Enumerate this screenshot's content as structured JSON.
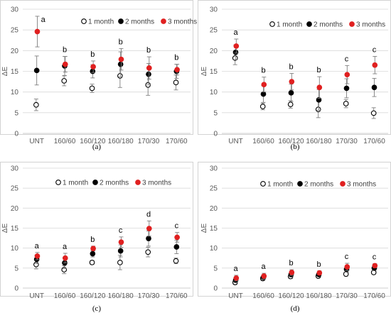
{
  "colors": {
    "month1": "#ffffff",
    "month1_stroke": "#000000",
    "month2": "#000000",
    "month3": "#e02020"
  },
  "legend_labels": [
    "1 month",
    "2 months",
    "3 months"
  ],
  "chart_data": [
    {
      "type": "scatter",
      "caption": "(a)",
      "ylabel": "ΔE",
      "ylim": [
        0,
        30
      ],
      "yticks": [
        "0",
        "5",
        "10",
        "15",
        "20",
        "25",
        "30"
      ],
      "categories": [
        "UNT",
        "160/60",
        "160/120",
        "160/180",
        "170/30",
        "170/60"
      ],
      "series": [
        {
          "name": "1 month",
          "values": [
            6.9,
            12.7,
            10.9,
            13.9,
            11.7,
            12.3
          ],
          "errors": [
            1.4,
            1.2,
            1.0,
            2.8,
            2.5,
            1.8
          ]
        },
        {
          "name": "2 months",
          "values": [
            15.2,
            16.3,
            15.0,
            16.7,
            14.3,
            15.0
          ],
          "errors": [
            3.5,
            2.3,
            1.6,
            3.0,
            2.6,
            1.7
          ]
        },
        {
          "name": "3 months",
          "values": [
            24.6,
            16.7,
            16.1,
            17.9,
            15.8,
            15.4
          ],
          "errors": [
            3.7,
            1.9,
            1.4,
            2.6,
            2.7,
            1.3
          ]
        }
      ],
      "labels": [
        "a",
        "b",
        "b",
        "b",
        "b",
        "b"
      ]
    },
    {
      "type": "scatter",
      "caption": "(b)",
      "ylabel": "ΔE",
      "ylim": [
        0,
        30
      ],
      "yticks": [
        "0",
        "5",
        "10",
        "15",
        "20",
        "25",
        "30"
      ],
      "categories": [
        "UNT",
        "160/60",
        "160/120",
        "160/180",
        "170/30",
        "170/60"
      ],
      "series": [
        {
          "name": "1 month",
          "values": [
            18.2,
            6.5,
            7.0,
            5.8,
            7.2,
            4.9
          ],
          "errors": [
            1.6,
            0.8,
            0.9,
            2.0,
            1.0,
            1.3
          ]
        },
        {
          "name": "2 months",
          "values": [
            19.6,
            9.5,
            9.8,
            8.1,
            10.9,
            11.1
          ],
          "errors": [
            1.8,
            2.0,
            2.1,
            2.5,
            2.3,
            2.2
          ]
        },
        {
          "name": "3 months",
          "values": [
            21.1,
            11.8,
            12.5,
            11.1,
            14.2,
            16.5
          ],
          "errors": [
            1.7,
            1.8,
            2.0,
            2.6,
            2.2,
            2.1
          ]
        }
      ],
      "labels": [
        "a",
        "b",
        "b",
        "b",
        "c",
        "c"
      ]
    },
    {
      "type": "scatter",
      "caption": "(c)",
      "ylabel": "ΔE",
      "ylim": [
        0,
        30
      ],
      "yticks": [
        "0",
        "5",
        "10",
        "15",
        "20",
        "25",
        "30"
      ],
      "categories": [
        "UNT",
        "160/60",
        "160/120",
        "160/180",
        "170/30",
        "170/60"
      ],
      "series": [
        {
          "name": "1 month",
          "values": [
            5.9,
            4.6,
            6.4,
            6.4,
            9.0,
            6.8
          ],
          "errors": [
            1.1,
            1.0,
            0.5,
            1.8,
            1.2,
            0.7
          ]
        },
        {
          "name": "2 months",
          "values": [
            7.2,
            6.3,
            8.6,
            9.3,
            12.4,
            10.3
          ],
          "errors": [
            1.1,
            1.4,
            0.8,
            1.5,
            1.9,
            1.7
          ]
        },
        {
          "name": "3 months",
          "values": [
            8.0,
            7.5,
            9.9,
            11.5,
            14.9,
            12.7
          ],
          "errors": [
            0.9,
            1.2,
            0.6,
            1.3,
            1.9,
            1.2
          ]
        }
      ],
      "labels": [
        "a",
        "a",
        "b",
        "c",
        "d",
        "c"
      ]
    },
    {
      "type": "scatter",
      "caption": "(d)",
      "ylabel": "ΔE",
      "ylim": [
        0,
        30
      ],
      "yticks": [
        "0",
        "5",
        "10",
        "15",
        "20",
        "25",
        "30"
      ],
      "categories": [
        "UNT",
        "160/60",
        "160/120",
        "160/180",
        "170/30",
        "170/60"
      ],
      "series": [
        {
          "name": "1 month",
          "values": [
            1.4,
            2.4,
            2.9,
            3.0,
            3.5,
            3.9
          ],
          "errors": [
            0.5,
            0.5,
            0.5,
            0.4,
            0.5,
            0.4
          ]
        },
        {
          "name": "2 months",
          "values": [
            2.0,
            2.7,
            3.4,
            3.4,
            4.7,
            5.0
          ],
          "errors": [
            0.6,
            0.6,
            0.6,
            0.4,
            0.7,
            0.6
          ]
        },
        {
          "name": "3 months",
          "values": [
            2.5,
            3.0,
            3.9,
            3.8,
            5.3,
            5.6
          ],
          "errors": [
            0.7,
            0.7,
            0.7,
            0.5,
            0.9,
            0.5
          ]
        }
      ],
      "labels": [
        "a",
        "a",
        "b",
        "b",
        "c",
        "c"
      ]
    }
  ]
}
